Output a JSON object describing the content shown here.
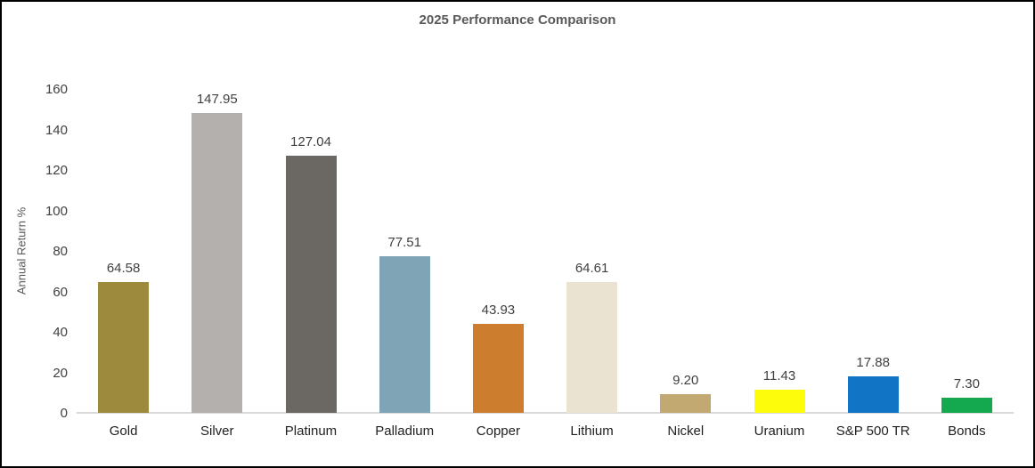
{
  "chart_data": {
    "type": "bar",
    "title": "2025 Performance Comparison",
    "xlabel": "",
    "ylabel": "Annual Return %",
    "categories": [
      "Gold",
      "Silver",
      "Platinum",
      "Palladium",
      "Copper",
      "Lithium",
      "Nickel",
      "Uranium",
      "S&P 500 TR",
      "Bonds"
    ],
    "values": [
      64.58,
      147.95,
      127.04,
      77.51,
      43.93,
      64.61,
      9.2,
      11.43,
      17.88,
      7.3
    ],
    "value_labels": [
      "64.58",
      "147.95",
      "127.04",
      "77.51",
      "43.93",
      "64.61",
      "9.20",
      "11.43",
      "17.88",
      "7.30"
    ],
    "bar_colors": [
      "#9e8a3d",
      "#b3b0ad",
      "#6b6762",
      "#7fa4b6",
      "#cd7d2e",
      "#ebe3d1",
      "#c2a972",
      "#fdfd0b",
      "#1274c5",
      "#14a94e"
    ],
    "ylim": [
      0,
      160
    ],
    "yticks": [
      0,
      20,
      40,
      60,
      80,
      100,
      120,
      140,
      160
    ],
    "grid": false,
    "data_labels": true,
    "legend_position": "none"
  },
  "theme": {
    "title_color": "#595959",
    "axis_title_color": "#595959",
    "tick_label_color": "#404040",
    "data_label_color": "#404040",
    "category_label_color": "#1f1f1f",
    "baseline_color": "#d9d9d9",
    "frame_border_color": "#000000",
    "background_color": "#ffffff"
  }
}
